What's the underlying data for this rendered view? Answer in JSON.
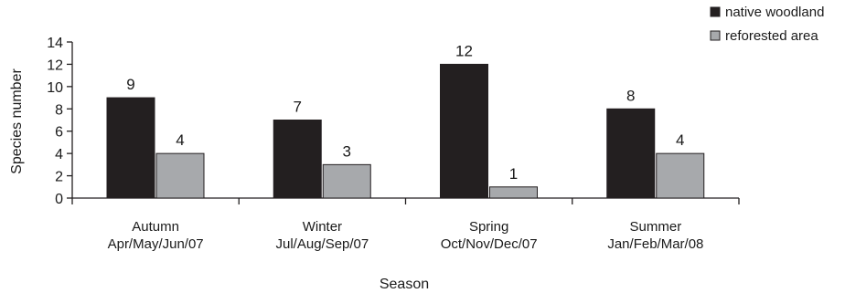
{
  "chart_data": {
    "type": "bar",
    "xlabel": "Season",
    "ylabel": "Species number",
    "ylim": [
      0,
      14
    ],
    "yticks": [
      0,
      2,
      4,
      6,
      8,
      10,
      12,
      14
    ],
    "grid": false,
    "legend_position": "top-right",
    "categories": [
      {
        "line1": "Autumn",
        "line2": "Apr/May/Jun/07"
      },
      {
        "line1": "Winter",
        "line2": "Jul/Aug/Sep/07"
      },
      {
        "line1": "Spring",
        "line2": "Oct/Nov/Dec/07"
      },
      {
        "line1": "Summer",
        "line2": "Jan/Feb/Mar/08"
      }
    ],
    "series": [
      {
        "name": "native woodland",
        "color": "#231f20",
        "values": [
          9,
          7,
          12,
          8
        ]
      },
      {
        "name": "reforested area",
        "color": "#a7a9ac",
        "values": [
          4,
          3,
          1,
          4
        ]
      }
    ]
  }
}
